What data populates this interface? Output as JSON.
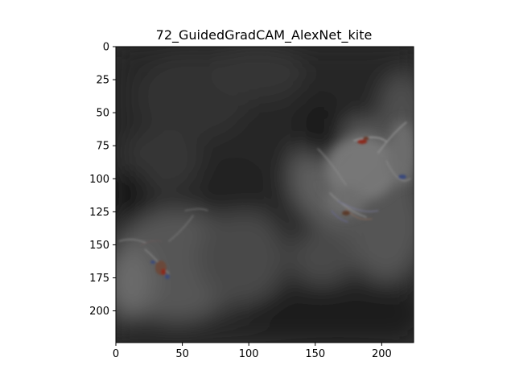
{
  "figure": {
    "title": "72_GuidedGradCAM_AlexNet_kite"
  },
  "chart_data": {
    "type": "heatmap",
    "title": "72_GuidedGradCAM_AlexNet_kite",
    "xlabel": "",
    "ylabel": "",
    "xlim": [
      0,
      224
    ],
    "ylim": [
      224,
      0
    ],
    "x_ticks": [
      0,
      50,
      100,
      150,
      200
    ],
    "y_ticks": [
      0,
      25,
      50,
      75,
      100,
      125,
      150,
      175,
      200
    ],
    "x_tick_labels": [
      "0",
      "50",
      "100",
      "150",
      "200"
    ],
    "y_tick_labels": [
      "0",
      "25",
      "50",
      "75",
      "100",
      "125",
      "150",
      "175",
      "200"
    ],
    "grid": false,
    "colors": {
      "background_dark": "#1e1e1e",
      "highlight_gray": "#6e6e6e",
      "accent_red": "#8a2a1c",
      "accent_blue": "#3a4a7a"
    }
  }
}
